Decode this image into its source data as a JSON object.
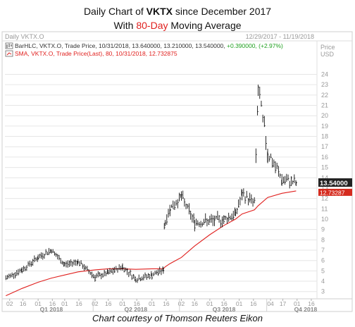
{
  "title": {
    "prefix": "Daily Chart of ",
    "ticker": "VKTX",
    "suffix": " since December 2017",
    "line2_prefix": "With ",
    "line2_highlight": "80-Day",
    "line2_suffix": " Moving Average"
  },
  "panel": {
    "name": "Daily VKTX.O",
    "date_range": "12/29/2017 - 11/19/2018",
    "currency": "Price",
    "currency_unit": "USD",
    "legend": [
      {
        "text": "BarHLC, VKTX.O, Trade Price, 10/31/2018, 13.640000, 13.210000, 13.540000, ",
        "change": "+0.390000, (+2.97%)",
        "icon": "bar-icon"
      },
      {
        "text": "SMA, VKTX.O, Trade Price(Last), 80, 10/31/2018, 12.732875",
        "icon": "line-icon"
      }
    ],
    "last_price_tag": "13.54000",
    "sma_price_tag": "12.73287"
  },
  "colors": {
    "price": "#111111",
    "sma": "#e0201e",
    "axis_text": "#999999",
    "grid": "#e6e6e6",
    "change": "#21a121",
    "last_tag_bg": "#222222",
    "sma_tag_bg": "#d52b1e"
  },
  "courtesy": "Chart courtesy of Thomson Reuters Eikon",
  "chart_data": {
    "type": "line",
    "title": "Daily Chart of VKTX since December 2017",
    "subtitle": "With 80-Day Moving Average",
    "ylabel": "Price USD",
    "ylim": [
      2.3,
      25.6
    ],
    "y_ticks": [
      3,
      4,
      5,
      6,
      7,
      8,
      9,
      10,
      11,
      12,
      13,
      14,
      15,
      16,
      17,
      18,
      19,
      20,
      21,
      22,
      23,
      24
    ],
    "x_day_ticks": [
      "02",
      "16",
      "01",
      "16",
      "01",
      "16",
      "02",
      "16",
      "01",
      "16",
      "01",
      "16",
      "02",
      "16",
      "01",
      "16",
      "01",
      "16",
      "04",
      "17",
      "01",
      "16",
      "01",
      "16"
    ],
    "x_quarter_labels": [
      "Q1 2018",
      "Q2 2018",
      "Q3 2018",
      "Q4 2018"
    ],
    "x": [
      "2017-12-29",
      "2018-01-15",
      "2018-02-01",
      "2018-02-15",
      "2018-03-01",
      "2018-03-15",
      "2018-04-02",
      "2018-04-16",
      "2018-05-01",
      "2018-05-15",
      "2018-06-01",
      "2018-06-13",
      "2018-06-14",
      "2018-06-15",
      "2018-06-20",
      "2018-07-02",
      "2018-07-16",
      "2018-08-01",
      "2018-08-16",
      "2018-08-28",
      "2018-09-04",
      "2018-09-17",
      "2018-09-21",
      "2018-10-01",
      "2018-10-16",
      "2018-10-31"
    ],
    "series": [
      {
        "name": "BarHLC, VKTX.O, Trade Price",
        "values": [
          4.3,
          5.1,
          6.3,
          7.0,
          5.6,
          5.9,
          4.4,
          4.8,
          5.4,
          4.2,
          4.6,
          5.1,
          9.3,
          9.8,
          11.0,
          12.2,
          9.7,
          9.8,
          10.0,
          10.5,
          12.4,
          11.6,
          22.5,
          16.5,
          13.8,
          13.54
        ]
      },
      {
        "name": "SMA, VKTX.O, Trade Price(Last), 80",
        "values": [
          2.6,
          3.3,
          3.9,
          4.3,
          4.6,
          4.9,
          5.1,
          5.2,
          5.2,
          5.15,
          5.2,
          5.2,
          5.3,
          5.4,
          5.7,
          6.3,
          7.4,
          8.5,
          9.4,
          10.0,
          10.5,
          10.9,
          11.3,
          12.1,
          12.5,
          12.73
        ]
      }
    ]
  }
}
